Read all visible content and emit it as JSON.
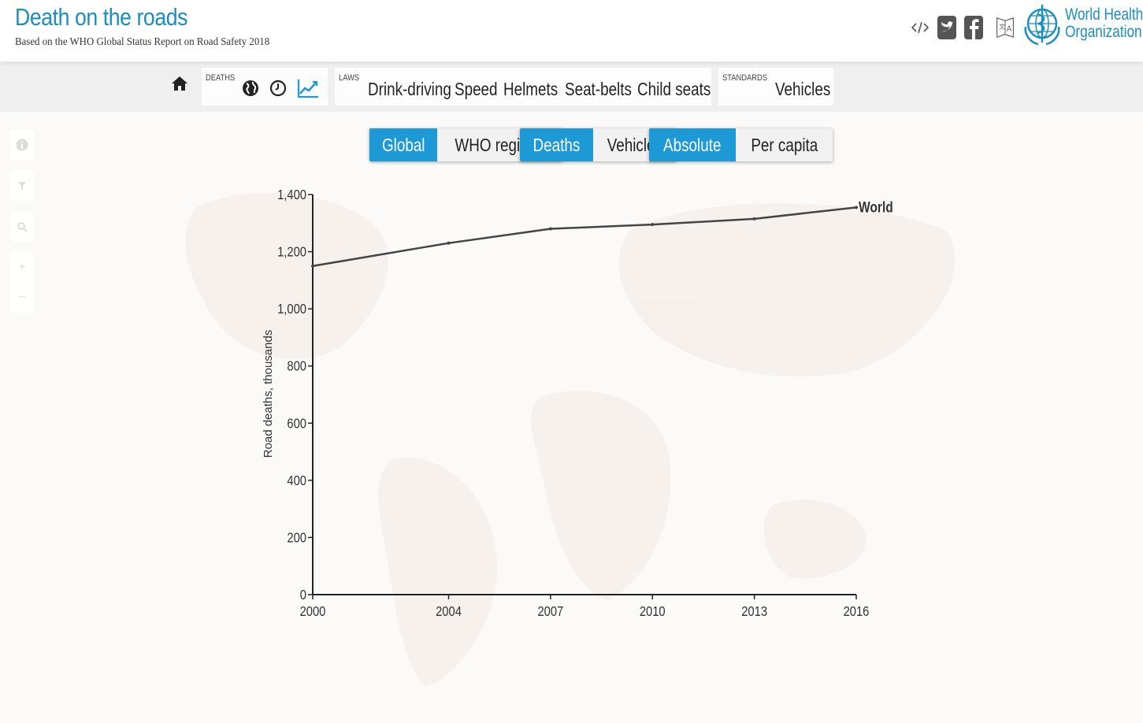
{
  "header": {
    "title": "Death on the roads",
    "subtitle": "Based on the WHO Global Status Report on Road Safety 2018",
    "org_line1": "World Health",
    "org_line2": "Organization",
    "icons": [
      "embed-code-icon",
      "twitter-icon",
      "facebook-icon",
      "language-icon",
      "who-emblem-icon"
    ]
  },
  "toolbar": {
    "deaths_label": "DEATHS",
    "laws_label": "LAWS",
    "standards_label": "STANDARDS",
    "laws": [
      "Drink-driving",
      "Speed",
      "Helmets",
      "Seat-belts",
      "Child seats"
    ],
    "standards": [
      "Vehicles"
    ],
    "icons": [
      "home-icon",
      "globe-icon",
      "clock-icon",
      "line-chart-icon"
    ]
  },
  "sidebar": {
    "icons": [
      "info-icon",
      "filter-icon",
      "search-icon",
      "zoom-in-icon",
      "zoom-out-icon"
    ]
  },
  "toggles": {
    "scope": {
      "options": [
        "Global",
        "WHO regions"
      ],
      "selected": "Global"
    },
    "measure": {
      "options": [
        "Deaths",
        "Vehicles"
      ],
      "selected": "Deaths"
    },
    "scale": {
      "options": [
        "Absolute",
        "Per capita"
      ],
      "selected": "Absolute"
    }
  },
  "colors": {
    "accent": "#1d9ad6",
    "title": "#1a8fbf",
    "line": "#444444"
  },
  "chart_data": {
    "type": "line",
    "ylabel": "Road deaths, thousands",
    "ylim": [
      0,
      1400
    ],
    "yticks": [
      0,
      200,
      400,
      600,
      800,
      1000,
      1200,
      1400
    ],
    "ytick_labels": [
      "0",
      "200",
      "400",
      "600",
      "800",
      "1,000",
      "1,200",
      "1,400"
    ],
    "xlim": [
      2000,
      2016
    ],
    "xticks": [
      2000,
      2004,
      2007,
      2010,
      2013,
      2016
    ],
    "xtick_labels": [
      "2000",
      "2004",
      "2007",
      "2010",
      "2013",
      "2016"
    ],
    "grid": false,
    "series": [
      {
        "name": "World",
        "x": [
          2000,
          2004,
          2007,
          2010,
          2013,
          2016
        ],
        "values": [
          1150,
          1230,
          1280,
          1295,
          1315,
          1355
        ]
      }
    ]
  }
}
